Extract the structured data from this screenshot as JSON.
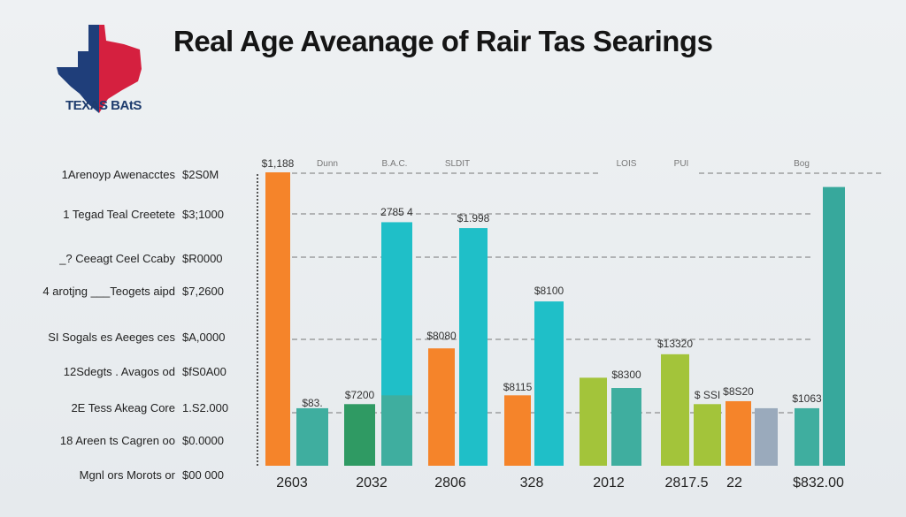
{
  "logo": {
    "text": "TEXAS BAtS",
    "colors": {
      "blue": "#1f3e7a",
      "red": "#d5203f"
    }
  },
  "chart_data": {
    "type": "bar",
    "title": "Real Age Aveanage of Rair Tas Searings",
    "ylim": [
      0,
      100
    ],
    "grid": true,
    "y_row_labels": [
      {
        "label": "1Arenoyp  Awenacctes",
        "value": "$2S0M"
      },
      {
        "label": "1  Tegad  Teal Creetete",
        "value": "$3;1000"
      },
      {
        "label": "_? Ceeagt      Ceel Ccaby",
        "value": "$R0000"
      },
      {
        "label": "4 arotjng ___Teogets  aipd",
        "value": "$7,2600"
      },
      {
        "label": "SI Sogals es Aeeges ces",
        "value": "$A,0000"
      },
      {
        "label": "12Sdegts .  Avagos od",
        "value": "$fS0A00"
      },
      {
        "label": "2E Tess     Akeag Core",
        "value": "1.S2.000"
      },
      {
        "label": "18 Areen ts Cagren oo",
        "value": "$0.0000"
      },
      {
        "label": "Mgnl ors Morots or",
        "value": "$00 000"
      }
    ],
    "top_labels": [
      "$1,188",
      "Dunn",
      "B.A.C.",
      "SLDIT",
      "LOIS",
      "PUI",
      "Bog"
    ],
    "x_tick_labels": [
      "2603",
      "2032",
      "2806",
      "328",
      "2012",
      "2817.5",
      "22",
      "$832.00"
    ],
    "bars": [
      {
        "value": 100,
        "color": "#f5842a",
        "label": ""
      },
      {
        "value": 19.6,
        "color": "#3fae9f",
        "label": "$83."
      },
      {
        "value": 21,
        "color": "#2f9a63",
        "label": "$7200"
      },
      {
        "value": 83,
        "color": "#1fbfc8",
        "label": "2785 4"
      },
      {
        "value": 40,
        "color": "#f5842a",
        "label": "$8080"
      },
      {
        "value": 81,
        "color": "#1fbfc8",
        "label": "$1.998"
      },
      {
        "value": 24,
        "color": "#f5842a",
        "label": "$8115"
      },
      {
        "value": 56,
        "color": "#1fbfc8",
        "label": "$8100"
      },
      {
        "value": 30,
        "color": "#a3c43a",
        "label": ""
      },
      {
        "value": 26.5,
        "color": "#3fae9f",
        "label": "$8300"
      },
      {
        "value": 38,
        "color": "#a3c43a",
        "label": "$13320"
      },
      {
        "value": 21,
        "color": "#a3c43a",
        "label": "$ SSI"
      },
      {
        "value": 22,
        "color": "#f5842a",
        "label": "$8S20"
      },
      {
        "value": 19.6,
        "color": "#9aaabc",
        "label": ""
      },
      {
        "value": 19.6,
        "color": "#3fae9f",
        "label": "$1063"
      },
      {
        "value": 95,
        "color": "#37a89c",
        "label": ""
      }
    ],
    "overlay": {
      "bar_index": 3,
      "value": 24,
      "color": "#3fae9f"
    }
  }
}
